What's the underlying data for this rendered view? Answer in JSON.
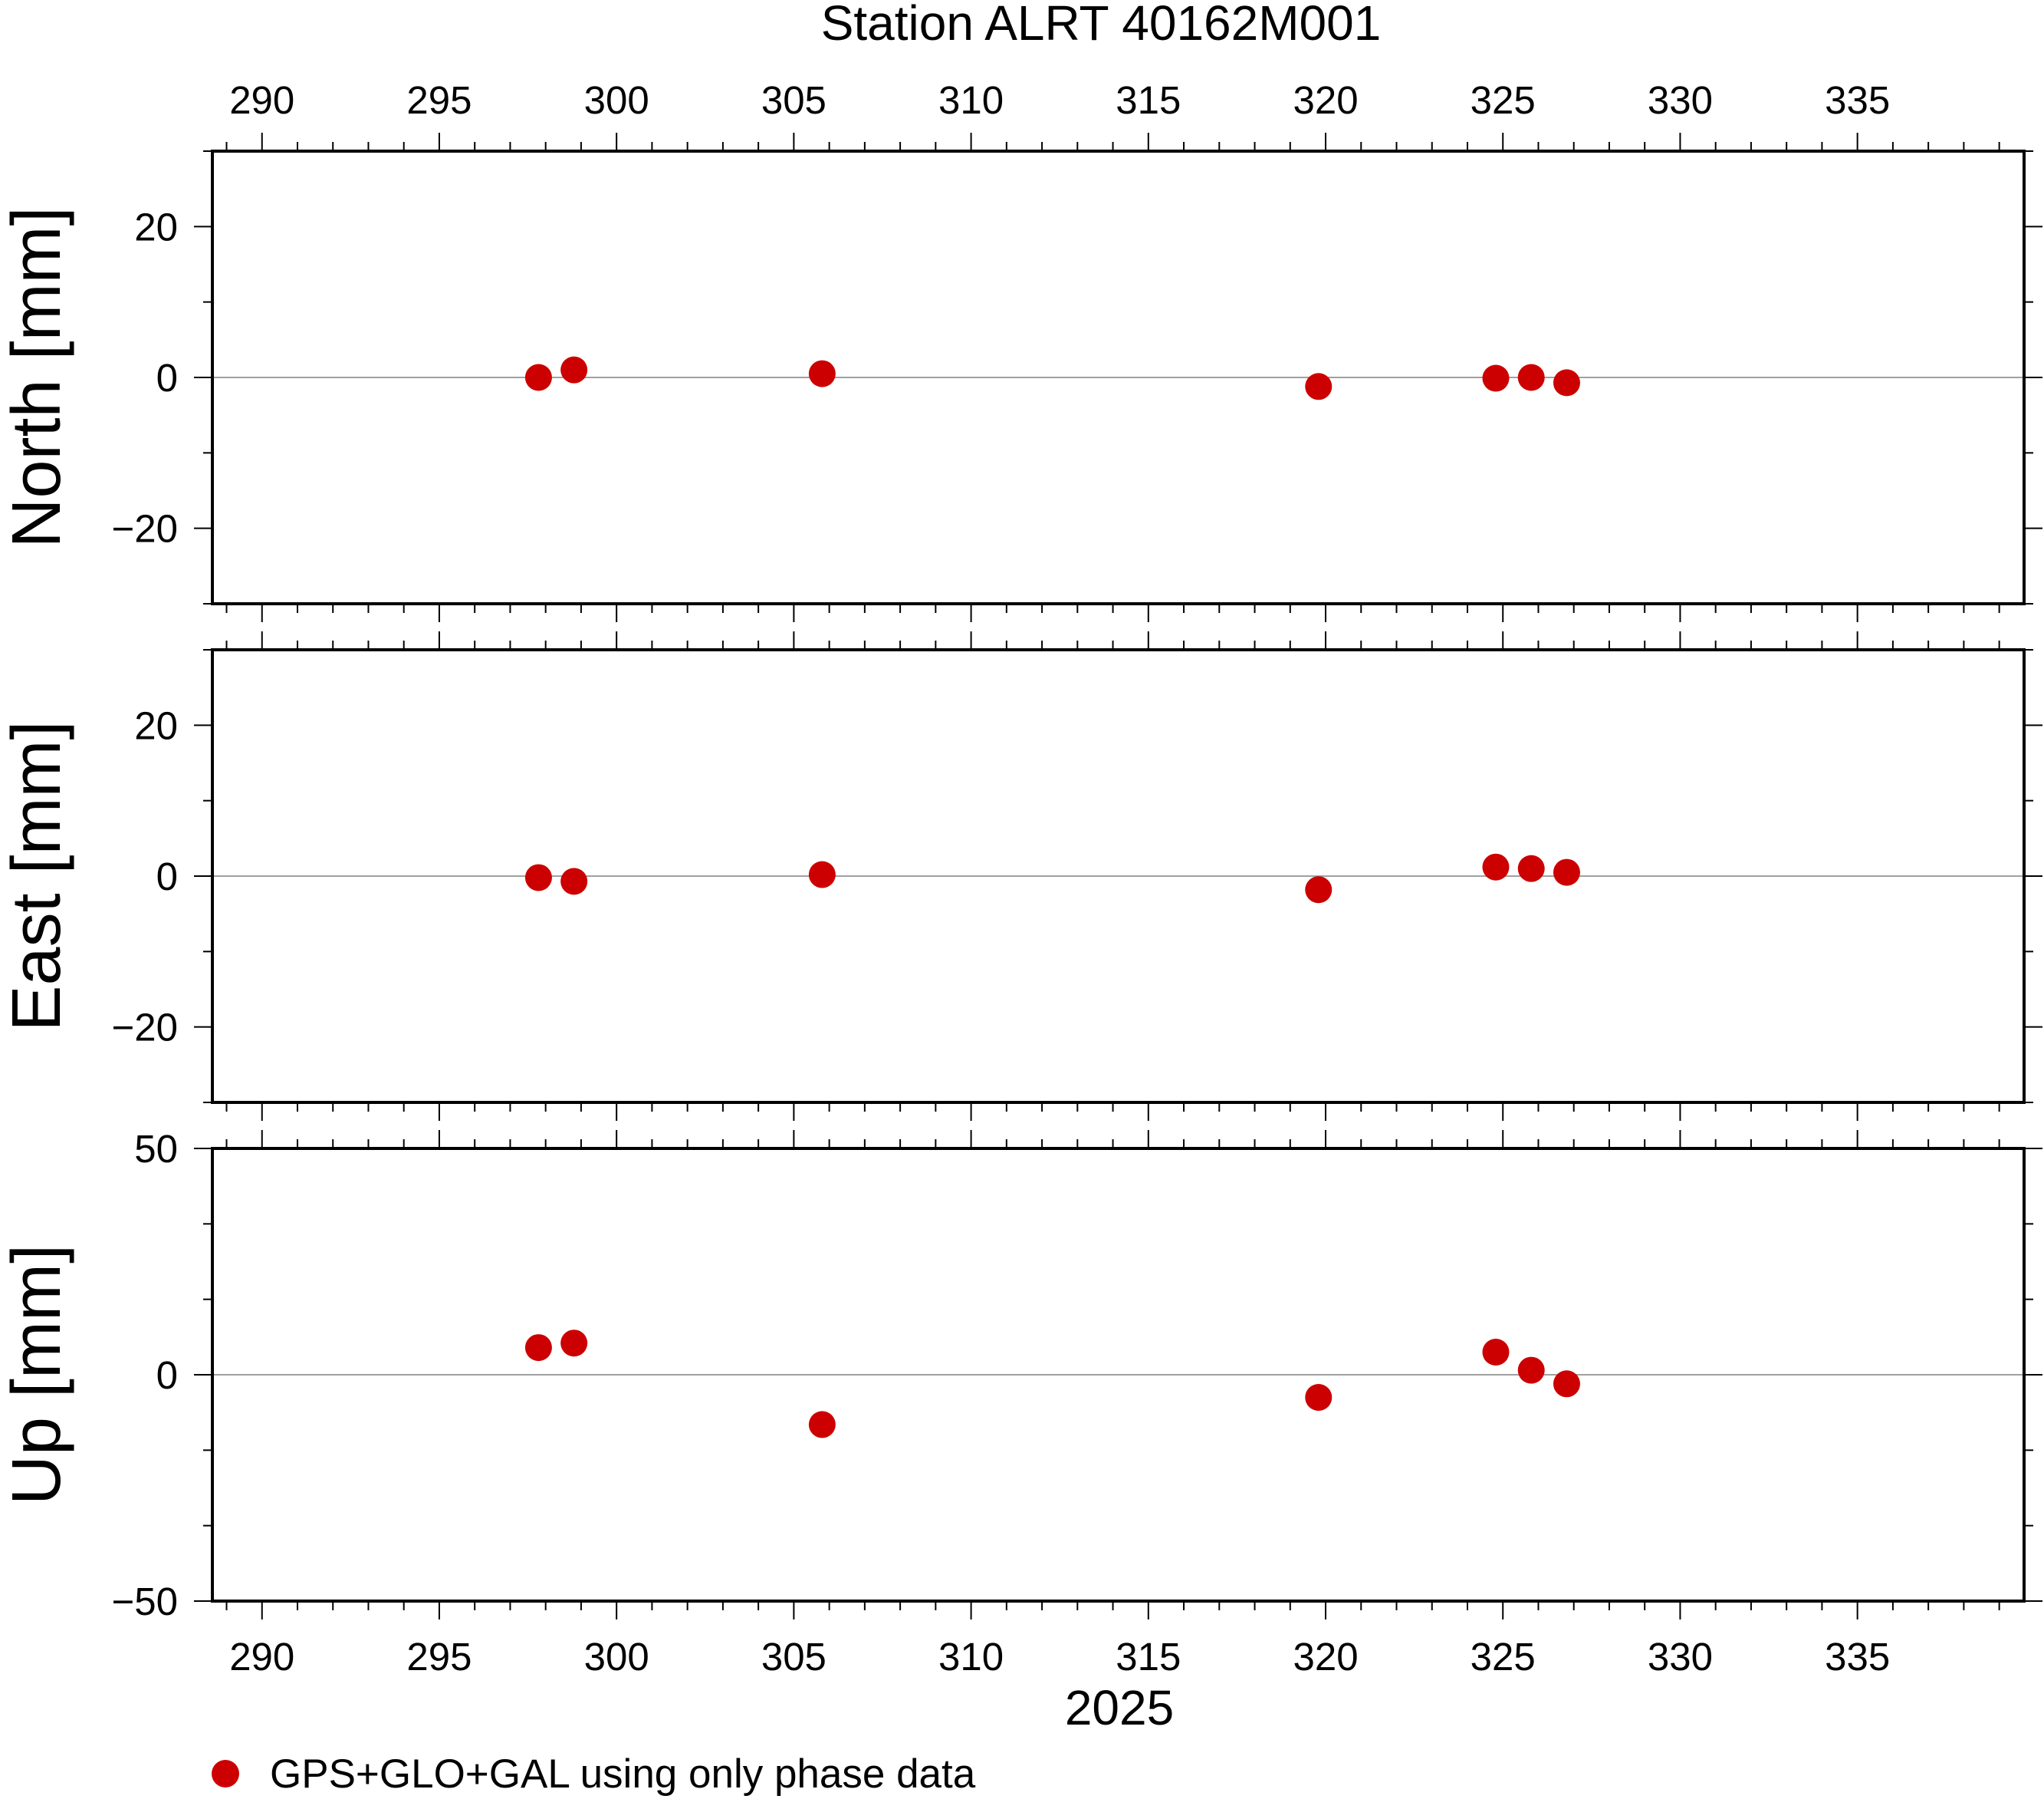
{
  "chart_data": {
    "type": "scatter",
    "title": "Station ALRT 40162M001",
    "xlabel": "2025",
    "xlim": [
      288.6,
      339.7
    ],
    "xticks": [
      290,
      295,
      300,
      305,
      310,
      315,
      320,
      325,
      330,
      335
    ],
    "x": [
      297.8,
      298.8,
      305.8,
      319.8,
      324.8,
      325.8,
      326.8
    ],
    "panels": [
      {
        "ylabel": "North [mm]",
        "ylim": [
          -30,
          30
        ],
        "yticks": [
          20,
          0,
          -20
        ],
        "values": [
          0.0,
          1.0,
          0.5,
          -1.2,
          -0.1,
          0.0,
          -0.7
        ]
      },
      {
        "ylabel": "East [mm]",
        "ylim": [
          -30,
          30
        ],
        "yticks": [
          20,
          0,
          -20
        ],
        "values": [
          -0.2,
          -0.7,
          0.2,
          -1.8,
          1.2,
          1.0,
          0.5
        ]
      },
      {
        "ylabel": "Up [mm]",
        "ylim": [
          -50,
          50
        ],
        "yticks": [
          50,
          0,
          -50
        ],
        "values": [
          6.0,
          7.0,
          -11.0,
          -5.0,
          5.0,
          1.0,
          -2.0
        ]
      }
    ],
    "series": [
      {
        "name": "GPS+GLO+GAL using only phase data",
        "color": "#cc0000"
      }
    ],
    "zero_line": true,
    "grid": false,
    "legend_position": "bottom-left"
  }
}
